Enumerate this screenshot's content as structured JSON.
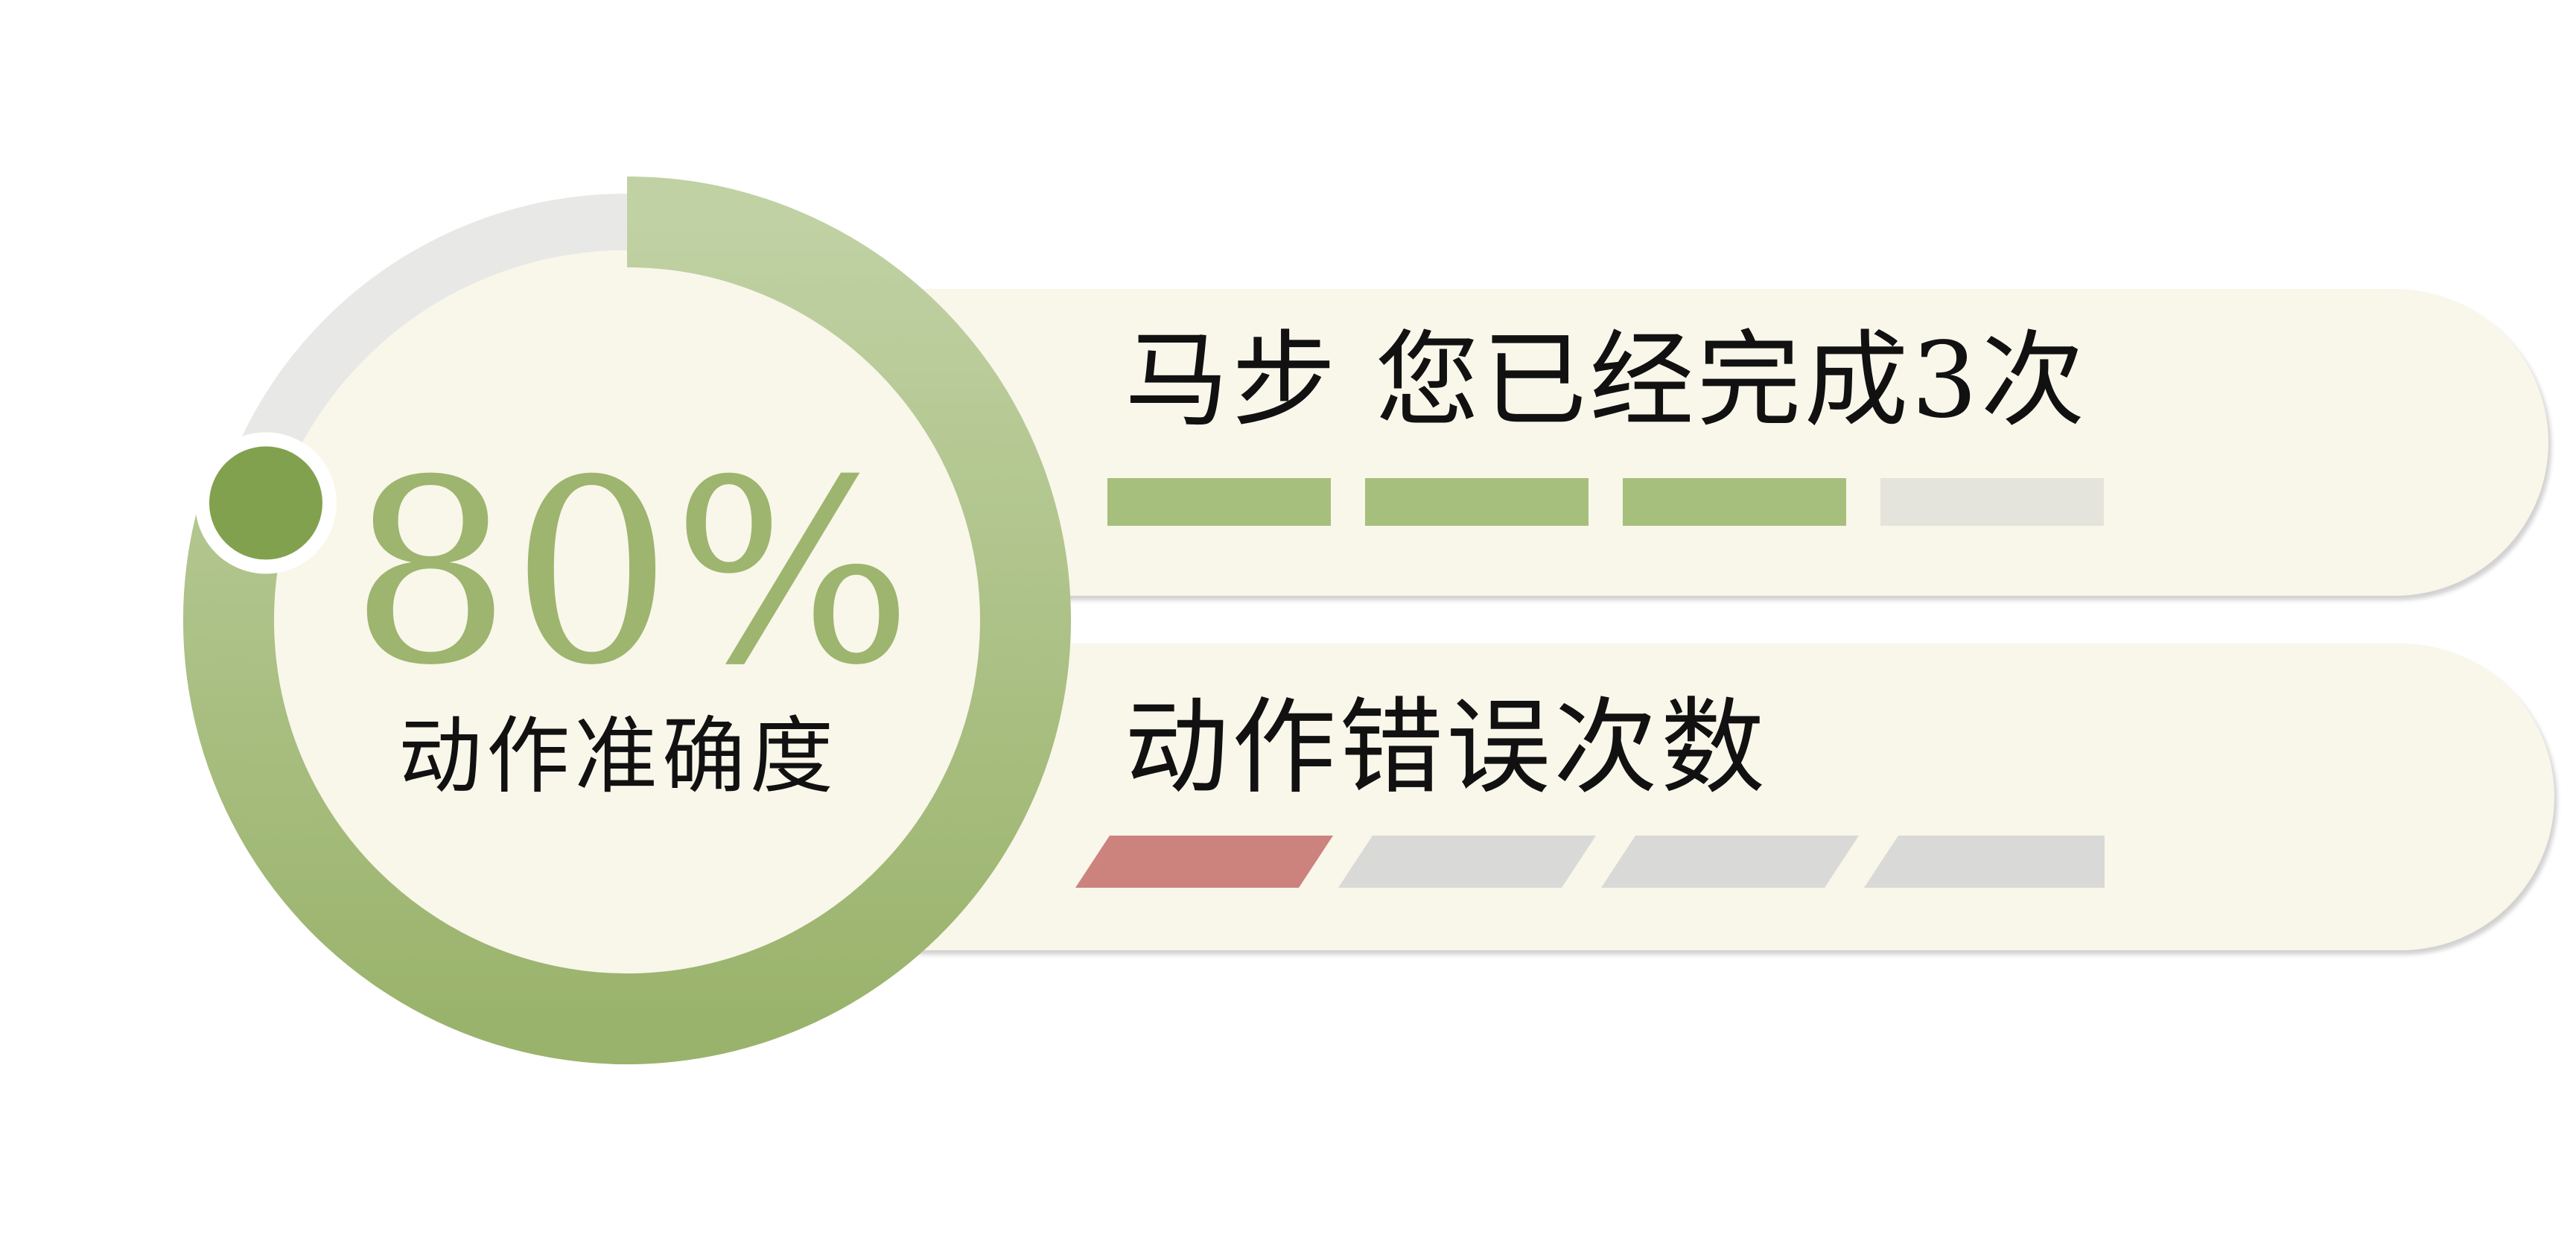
{
  "accuracy": {
    "value": "80%",
    "fraction": 0.8,
    "label": "动作准确度"
  },
  "completion": {
    "title": "马步 您已经完成3次",
    "completed": 3,
    "total": 4
  },
  "errors": {
    "title": "动作错误次数",
    "count": 1,
    "total": 4
  },
  "colors": {
    "green": "#a6bf7c",
    "green_dark": "#82a14e",
    "green_light": "#c0d1a3",
    "ring_track": "#e8e8e6",
    "card_bg": "#f9f6ea",
    "seg_empty_top": "#e4e4dc",
    "seg_empty_bottom": "#d9d9d7",
    "error_red": "#cc837e",
    "text": "#111111"
  }
}
